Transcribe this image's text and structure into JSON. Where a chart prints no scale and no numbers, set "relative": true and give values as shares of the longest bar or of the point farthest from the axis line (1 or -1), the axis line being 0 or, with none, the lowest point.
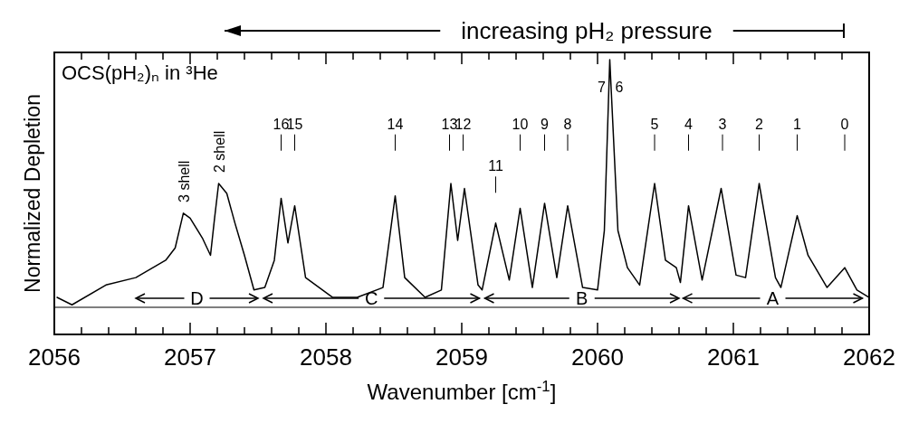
{
  "chart_data": {
    "type": "line",
    "title": "increasing pH₂ pressure",
    "subtitle": "OCS(pH₂)ₙ in ³He",
    "xlabel": "Wavenumber  [cm$^{-1}$]",
    "ylabel": "Normalized Depletion",
    "relative": true,
    "xlim": [
      2056,
      2062
    ],
    "xticks": [
      2056,
      {
        "value": 2056.2,
        "label": null
      },
      {
        "value": 2056.4,
        "label": null
      },
      {
        "value": 2056.6,
        "label": null
      },
      {
        "value": 2056.8,
        "label": null
      },
      2057,
      {
        "value": 2057.2,
        "label": null
      },
      {
        "value": 2057.4,
        "label": null
      },
      {
        "value": 2057.6,
        "label": null
      },
      {
        "value": 2057.8,
        "label": null
      },
      2058,
      {
        "value": 2058.2,
        "label": null
      },
      {
        "value": 2058.4,
        "label": null
      },
      {
        "value": 2058.6,
        "label": null
      },
      {
        "value": 2058.8,
        "label": null
      },
      2059,
      {
        "value": 2059.2,
        "label": null
      },
      {
        "value": 2059.4,
        "label": null
      },
      {
        "value": 2059.6,
        "label": null
      },
      {
        "value": 2059.8,
        "label": null
      },
      2060,
      {
        "value": 2060.2,
        "label": null
      },
      {
        "value": 2060.4,
        "label": null
      },
      {
        "value": 2060.6,
        "label": null
      },
      {
        "value": 2060.8,
        "label": null
      },
      2061,
      {
        "value": 2061.2,
        "label": null
      },
      {
        "value": 2061.4,
        "label": null
      },
      {
        "value": 2061.6,
        "label": null
      },
      {
        "value": 2061.8,
        "label": null
      },
      2062
    ],
    "series": [
      {
        "color": "#000000",
        "x": [
          2056.02,
          2056.13,
          2056.38,
          2056.6,
          2056.82,
          2056.89,
          2056.95,
          2057.0,
          2057.09,
          2057.15,
          2057.18,
          2057.21,
          2057.27,
          2057.33,
          2057.4,
          2057.47,
          2057.55,
          2057.62,
          2057.67,
          2057.72,
          2057.77,
          2057.85,
          2058.05,
          2058.23,
          2058.42,
          2058.51,
          2058.58,
          2058.73,
          2058.85,
          2058.92,
          2058.97,
          2059.02,
          2059.12,
          2059.15,
          2059.25,
          2059.35,
          2059.43,
          2059.52,
          2059.61,
          2059.7,
          2059.78,
          2059.89,
          2060.0,
          2060.05,
          2060.09,
          2060.15,
          2060.22,
          2060.31,
          2060.42,
          2060.5,
          2060.58,
          2060.61,
          2060.67,
          2060.77,
          2060.91,
          2061.02,
          2061.09,
          2061.19,
          2061.31,
          2061.35,
          2061.47,
          2061.55,
          2061.69,
          2061.82,
          2061.91,
          2062.0
        ],
        "values": [
          0.04,
          0.01,
          0.09,
          0.12,
          0.19,
          0.24,
          0.38,
          0.36,
          0.28,
          0.21,
          0.36,
          0.5,
          0.46,
          0.34,
          0.21,
          0.07,
          0.08,
          0.19,
          0.44,
          0.26,
          0.41,
          0.12,
          0.04,
          0.04,
          0.08,
          0.45,
          0.12,
          0.04,
          0.07,
          0.5,
          0.27,
          0.48,
          0.09,
          0.07,
          0.34,
          0.11,
          0.4,
          0.08,
          0.42,
          0.12,
          0.41,
          0.08,
          0.07,
          0.31,
          1.0,
          0.31,
          0.16,
          0.09,
          0.5,
          0.19,
          0.16,
          0.1,
          0.41,
          0.11,
          0.48,
          0.13,
          0.12,
          0.5,
          0.12,
          0.08,
          0.37,
          0.21,
          0.08,
          0.16,
          0.07,
          0.04
        ]
      }
    ],
    "annotations": [
      "D",
      "C",
      "B",
      "A",
      {
        "text": "3 shell",
        "x": 2056.95,
        "y": 0.38
      },
      {
        "text": "2 shell",
        "x": 2057.21,
        "y": 0.5
      },
      "16",
      "15",
      "14",
      "13",
      "12",
      "11",
      "10",
      "9",
      "8",
      "7",
      "6",
      "5",
      "4",
      "3",
      "2",
      "1",
      "0"
    ]
  }
}
